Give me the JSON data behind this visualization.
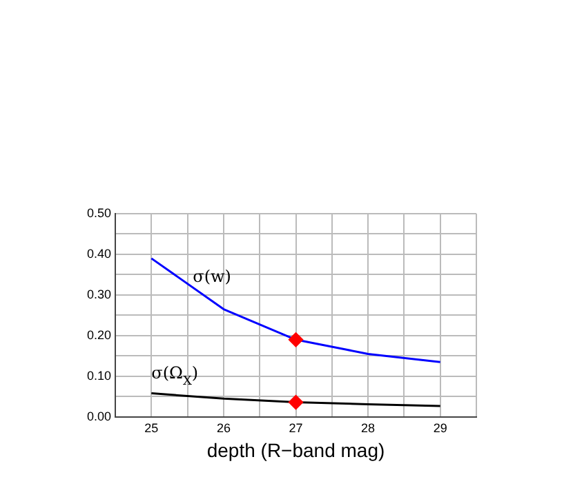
{
  "chart_data": {
    "type": "line",
    "xlabel": "depth (R−band mag)",
    "xlim": [
      24.5,
      29.5
    ],
    "xticks": [
      {
        "value": 24.5,
        "label": null
      },
      25,
      {
        "value": 25.5,
        "label": null
      },
      26,
      {
        "value": 26.5,
        "label": null
      },
      27,
      {
        "value": 27.5,
        "label": null
      },
      28,
      {
        "value": 28.5,
        "label": null
      },
      29,
      {
        "value": 29.5,
        "label": null
      }
    ],
    "ylim": [
      0,
      0.5
    ],
    "yticks": [
      {
        "value": 0,
        "label": "0.00"
      },
      {
        "value": 0.05,
        "label": null
      },
      {
        "value": 0.1,
        "label": "0.10"
      },
      {
        "value": 0.15,
        "label": null
      },
      {
        "value": 0.2,
        "label": "0.20"
      },
      {
        "value": 0.25,
        "label": null
      },
      {
        "value": 0.3,
        "label": "0.30"
      },
      {
        "value": 0.35,
        "label": null
      },
      {
        "value": 0.4,
        "label": "0.40"
      },
      {
        "value": 0.45,
        "label": null
      },
      {
        "value": 0.5,
        "label": "0.50"
      }
    ],
    "grid": true,
    "legend": false,
    "marker": "none",
    "series": [
      {
        "name": "σ(w)",
        "color": "#0000ff",
        "x": [
          25,
          26,
          27,
          28,
          29
        ],
        "values": [
          0.39,
          0.265,
          0.19,
          0.155,
          0.135
        ]
      },
      {
        "name": "σ(Ω$_{X}$)",
        "color": "#000000",
        "x": [
          25,
          26,
          27,
          28,
          29
        ],
        "values": [
          0.058,
          0.045,
          0.036,
          0.031,
          0.027
        ]
      },
      {
        "type": "scatter",
        "color": "#ff0000",
        "marker": "diamond",
        "x": [
          27,
          27
        ],
        "values": [
          0.19,
          0.036
        ]
      }
    ]
  }
}
